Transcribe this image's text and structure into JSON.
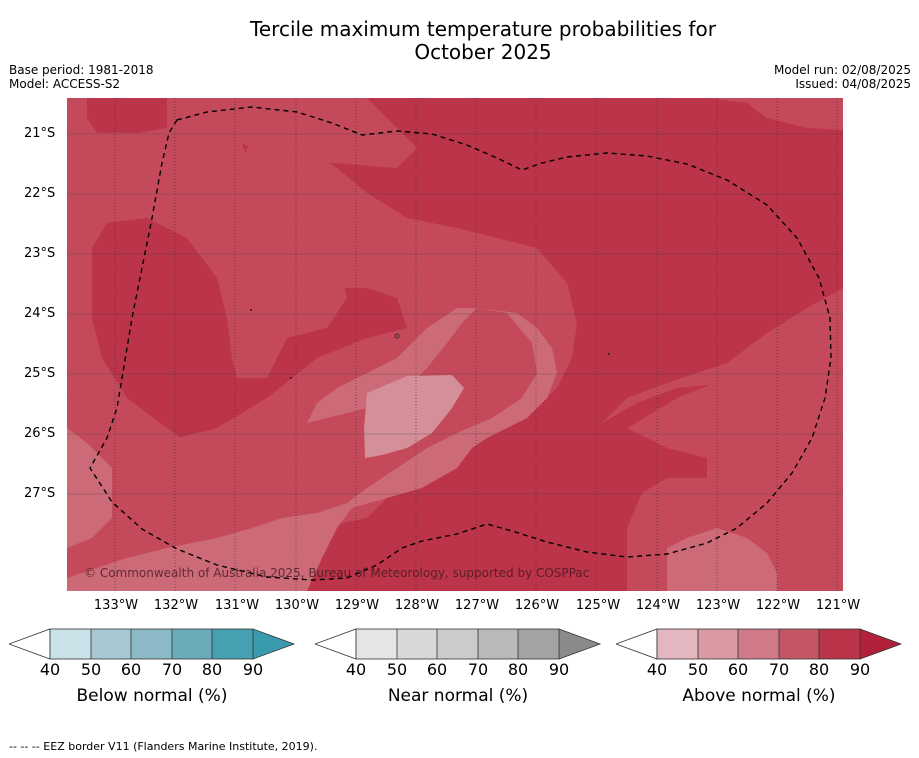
{
  "title_line1": "Tercile maximum temperature probabilities for",
  "title_line2": "October 2025",
  "base_period": "Base period: 1981-2018",
  "model": "Model: ACCESS-S2",
  "model_run": "Model run: 02/08/2025",
  "issued": "Issued: 04/08/2025",
  "copyright": "© Commonwealth of Australia 2025, Bureau of Meteorology, supported by COSPPac",
  "lat_labels": [
    "21°S",
    "22°S",
    "23°S",
    "24°S",
    "25°S",
    "26°S",
    "27°S"
  ],
  "lon_labels": [
    "133°W",
    "132°W",
    "131°W",
    "130°W",
    "129°W",
    "128°W",
    "127°W",
    "126°W",
    "125°W",
    "124°W",
    "123°W",
    "122°W",
    "121°W"
  ],
  "legends": [
    {
      "title": "Below normal (%)",
      "ticks": [
        "40",
        "50",
        "60",
        "70",
        "80",
        "90"
      ],
      "colors": [
        "#c9e2e8",
        "#a7c8d0",
        "#8bbac6",
        "#6aabb9",
        "#47a0b1"
      ],
      "arrow_color": "#3a9aae"
    },
    {
      "title": "Near normal (%)",
      "ticks": [
        "40",
        "50",
        "60",
        "70",
        "80",
        "90"
      ],
      "colors": [
        "#e5e5e5",
        "#d8d8d8",
        "#cbcbcb",
        "#b9b9b9",
        "#a3a3a3"
      ],
      "arrow_color": "#8a8a8a"
    },
    {
      "title": "Above normal (%)",
      "ticks": [
        "40",
        "50",
        "60",
        "70",
        "80",
        "90"
      ],
      "colors": [
        "#e3b7bf",
        "#d99aa3",
        "#cf7a86",
        "#c65666",
        "#bb3449"
      ],
      "arrow_color": "#b3203b"
    }
  ],
  "colors": {
    "above_80": "#bb3449",
    "above_70": "#c44a5b",
    "above_60": "#cc6a77",
    "above_50": "#d58f98",
    "gridline": "#333333",
    "eez_border": "#000000"
  },
  "footnote": "--  --  -- EEZ border V11 (Flanders Marine Institute, 2019)."
}
